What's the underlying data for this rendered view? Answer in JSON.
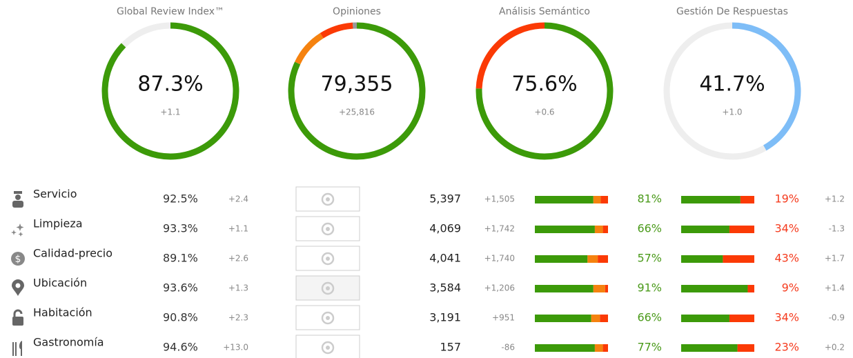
{
  "gauges": [
    {
      "title": "Global Review Index™",
      "value": "87.3%",
      "change": "+1.1",
      "segments": [
        {
          "value": 87.3,
          "color": "#3c9a09"
        },
        {
          "value": 12.7,
          "color": "#eeeeee"
        }
      ]
    },
    {
      "title": "Opiniones",
      "value": "79,355",
      "change": "+25,816",
      "segments": [
        {
          "value": 82,
          "color": "#3c9a09"
        },
        {
          "value": 9,
          "color": "#f5820f"
        },
        {
          "value": 8,
          "color": "#fb3a05"
        },
        {
          "value": 1,
          "color": "#999999"
        }
      ]
    },
    {
      "title": "Análisis Semántico",
      "value": "75.6%",
      "change": "+0.6",
      "segments": [
        {
          "value": 75.6,
          "color": "#3c9a09"
        },
        {
          "value": 24.4,
          "color": "#fb3a05"
        }
      ]
    },
    {
      "title": "Gestión De Respuestas",
      "value": "41.7%",
      "change": "+1.0",
      "segments": [
        {
          "value": 41.7,
          "color": "#7ebdf7"
        },
        {
          "value": 58.3,
          "color": "#eeeeee"
        }
      ]
    }
  ],
  "bar_colors": [
    "#3c9a09",
    "#f5820f",
    "#fb3a05"
  ],
  "rows": [
    {
      "name": "Servicio",
      "score": "92.5%",
      "change": "+2.4",
      "count": "5,397",
      "count_change": "+1,505",
      "sentiment": [
        80,
        10,
        10
      ],
      "positive": {
        "value": 81,
        "label": "81%"
      },
      "negative": {
        "value": 19,
        "label": "19%"
      },
      "trend": "+1.2"
    },
    {
      "name": "Limpieza",
      "score": "93.3%",
      "change": "+1.1",
      "count": "4,069",
      "count_change": "+1,742",
      "sentiment": [
        82,
        11,
        7
      ],
      "positive": {
        "value": 66,
        "label": "66%"
      },
      "negative": {
        "value": 34,
        "label": "34%"
      },
      "trend": "-1.3"
    },
    {
      "name": "Calidad-precio",
      "score": "89.1%",
      "change": "+2.6",
      "count": "4,041",
      "count_change": "+1,740",
      "sentiment": [
        72,
        14,
        14
      ],
      "positive": {
        "value": 57,
        "label": "57%"
      },
      "negative": {
        "value": 43,
        "label": "43%"
      },
      "trend": "+1.7"
    },
    {
      "name": "Ubicación",
      "score": "93.6%",
      "change": "+1.3",
      "count": "3,584",
      "count_change": "+1,206",
      "sentiment": [
        80,
        16,
        4
      ],
      "positive": {
        "value": 91,
        "label": "91%"
      },
      "negative": {
        "value": 9,
        "label": "9%"
      },
      "trend": "+1.4"
    },
    {
      "name": "Habitación",
      "score": "90.8%",
      "change": "+2.3",
      "count": "3,191",
      "count_change": "+951",
      "sentiment": [
        77,
        12,
        11
      ],
      "positive": {
        "value": 66,
        "label": "66%"
      },
      "negative": {
        "value": 34,
        "label": "34%"
      },
      "trend": "-0.9"
    },
    {
      "name": "Gastronomía",
      "score": "94.6%",
      "change": "+13.0",
      "count": "157",
      "count_change": "-86",
      "sentiment": [
        82,
        11,
        7
      ],
      "positive": {
        "value": 77,
        "label": "77%"
      },
      "negative": {
        "value": 23,
        "label": "23%"
      },
      "trend": "+0.2"
    }
  ]
}
